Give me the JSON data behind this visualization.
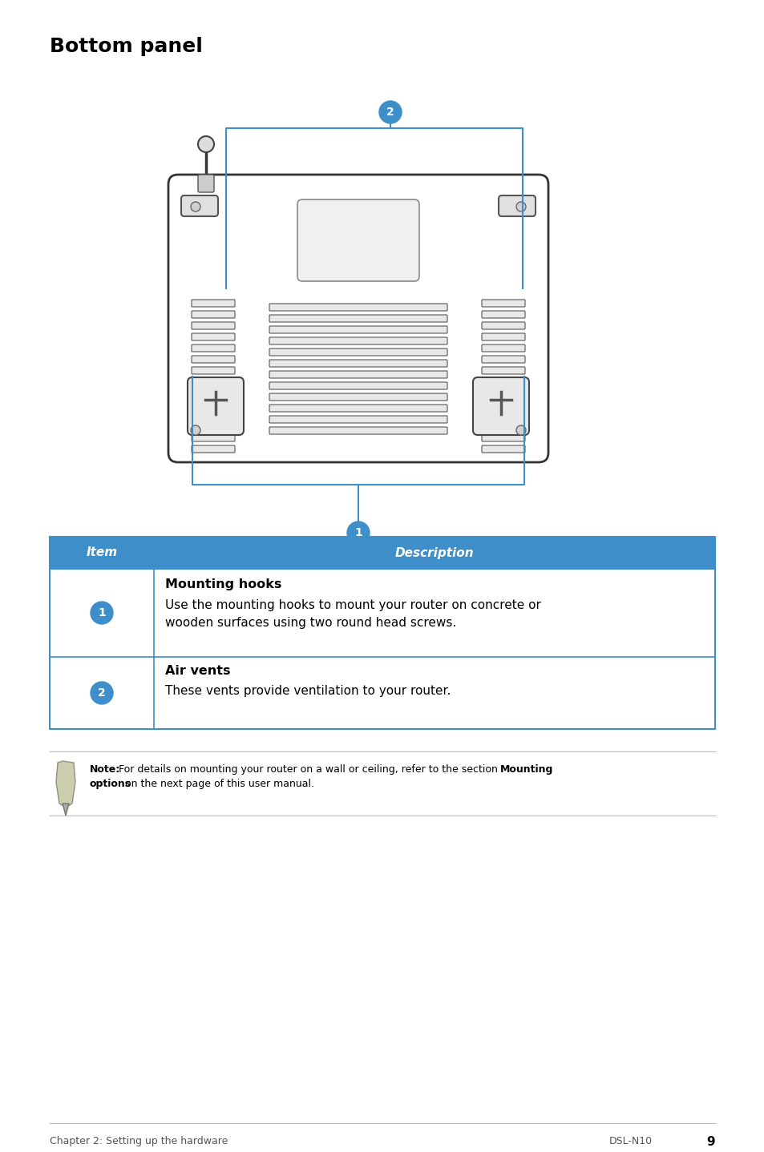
{
  "title": "Bottom panel",
  "table_header_bg": "#3d8ec9",
  "table_header_color": "#ffffff",
  "table_border_color": "#3d8ec9",
  "row1_item": "1",
  "row1_title": "Mounting hooks",
  "row1_desc_line1": "Use the mounting hooks to mount your router on concrete or",
  "row1_desc_line2": "wooden surfaces using two round head screws.",
  "row2_item": "2",
  "row2_title": "Air vents",
  "row2_desc": "These vents provide ventilation to your router.",
  "note_bold1": "Note:",
  "note_normal1": " For details on mounting your router on a wall or ceiling, refer to the section ",
  "note_bold2": "Mounting",
  "note_normal2": "options",
  "note_normal3": " on the next page of this user manual.",
  "footer_left": "Chapter 2: Setting up the hardware",
  "footer_right": "DSL-N10",
  "footer_page": "9",
  "circle_color": "#3d8ec9",
  "line_color": "#3d8ec9",
  "bg_color": "#ffffff",
  "body_edge": "#333333",
  "body_fill": "#ffffff",
  "vent_edge": "#555555",
  "vent_fill": "#e8e8e8"
}
